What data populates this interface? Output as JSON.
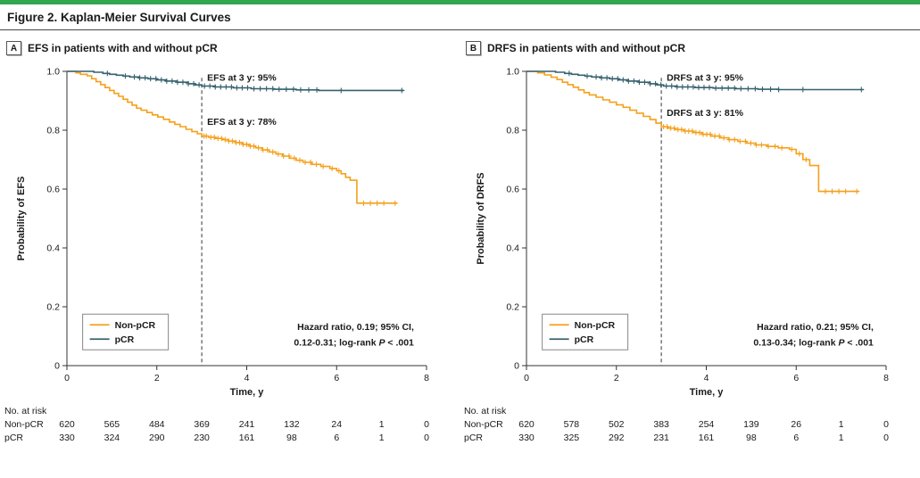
{
  "figure": {
    "title": "Figure 2. Kaplan-Meier Survival Curves",
    "accent_color": "#2FA84F"
  },
  "colors": {
    "non_pcr": "#F5A01B",
    "pcr": "#35616E",
    "axis": "#333333",
    "dashed": "#555555",
    "text": "#1a1a1a"
  },
  "chart_data": [
    {
      "type": "line",
      "subtype": "kaplan-meier-step",
      "panel_label": "A",
      "title": "EFS in patients with and without pCR",
      "xlabel": "Time, y",
      "ylabel": "Probability of EFS",
      "xlim": [
        0,
        8
      ],
      "ylim": [
        0,
        1
      ],
      "xticks": [
        0,
        2,
        4,
        6,
        8
      ],
      "yticks": [
        0,
        0.2,
        0.4,
        0.6,
        0.8,
        1.0
      ],
      "ref_line_x": 3,
      "annotations": [
        {
          "text": "EFS at 3 y: 95%",
          "x": 3.12,
          "y": 0.968
        },
        {
          "text": "EFS at 3 y: 78%",
          "x": 3.12,
          "y": 0.818
        }
      ],
      "stats": {
        "line1": "Hazard ratio, 0.19; 95% CI,",
        "line2_pre": "0.12-0.31; log-rank ",
        "line2_italic": "P",
        "line2_post": " < .001"
      },
      "series": [
        {
          "name": "Non-pCR",
          "color_key": "non_pcr",
          "steps": [
            [
              0,
              1
            ],
            [
              0.2,
              0.995
            ],
            [
              0.3,
              0.99
            ],
            [
              0.45,
              0.985
            ],
            [
              0.55,
              0.975
            ],
            [
              0.65,
              0.965
            ],
            [
              0.75,
              0.955
            ],
            [
              0.85,
              0.945
            ],
            [
              0.95,
              0.935
            ],
            [
              1.05,
              0.925
            ],
            [
              1.15,
              0.915
            ],
            [
              1.25,
              0.905
            ],
            [
              1.35,
              0.895
            ],
            [
              1.45,
              0.885
            ],
            [
              1.55,
              0.875
            ],
            [
              1.65,
              0.868
            ],
            [
              1.78,
              0.86
            ],
            [
              1.9,
              0.852
            ],
            [
              2.02,
              0.845
            ],
            [
              2.15,
              0.837
            ],
            [
              2.28,
              0.828
            ],
            [
              2.4,
              0.82
            ],
            [
              2.52,
              0.812
            ],
            [
              2.65,
              0.803
            ],
            [
              2.78,
              0.795
            ],
            [
              2.9,
              0.788
            ],
            [
              3.0,
              0.78
            ],
            [
              3.15,
              0.776
            ],
            [
              3.3,
              0.772
            ],
            [
              3.45,
              0.768
            ],
            [
              3.6,
              0.763
            ],
            [
              3.75,
              0.758
            ],
            [
              3.9,
              0.752
            ],
            [
              4.05,
              0.746
            ],
            [
              4.2,
              0.74
            ],
            [
              4.35,
              0.733
            ],
            [
              4.5,
              0.726
            ],
            [
              4.65,
              0.719
            ],
            [
              4.8,
              0.712
            ],
            [
              4.95,
              0.705
            ],
            [
              5.1,
              0.698
            ],
            [
              5.25,
              0.691
            ],
            [
              5.45,
              0.684
            ],
            [
              5.65,
              0.677
            ],
            [
              5.85,
              0.67
            ],
            [
              6.0,
              0.662
            ],
            [
              6.1,
              0.652
            ],
            [
              6.2,
              0.64
            ],
            [
              6.3,
              0.63
            ],
            [
              6.45,
              0.552
            ],
            [
              7.35,
              0.552
            ]
          ],
          "censor_times": [
            3.05,
            3.1,
            3.2,
            3.28,
            3.36,
            3.44,
            3.52,
            3.6,
            3.68,
            3.76,
            3.84,
            3.92,
            4.0,
            4.08,
            4.16,
            4.26,
            4.36,
            4.46,
            4.58,
            4.7,
            4.82,
            4.94,
            5.06,
            5.18,
            5.3,
            5.42,
            5.55,
            5.7,
            5.9,
            6.05,
            6.6,
            6.75,
            6.9,
            7.05,
            7.3
          ]
        },
        {
          "name": "pCR",
          "color_key": "pcr",
          "steps": [
            [
              0,
              1
            ],
            [
              0.6,
              0.997
            ],
            [
              0.8,
              0.993
            ],
            [
              0.95,
              0.99
            ],
            [
              1.1,
              0.987
            ],
            [
              1.25,
              0.984
            ],
            [
              1.4,
              0.981
            ],
            [
              1.6,
              0.978
            ],
            [
              1.8,
              0.975
            ],
            [
              2.0,
              0.971
            ],
            [
              2.2,
              0.967
            ],
            [
              2.45,
              0.963
            ],
            [
              2.7,
              0.958
            ],
            [
              2.85,
              0.954
            ],
            [
              3.0,
              0.95
            ],
            [
              3.3,
              0.947
            ],
            [
              3.7,
              0.944
            ],
            [
              4.1,
              0.941
            ],
            [
              4.6,
              0.939
            ],
            [
              5.1,
              0.937
            ],
            [
              5.6,
              0.935
            ],
            [
              7.5,
              0.935
            ]
          ],
          "censor_times": [
            0.9,
            1.3,
            1.5,
            1.62,
            1.74,
            1.86,
            1.98,
            2.1,
            2.22,
            2.34,
            2.46,
            2.58,
            2.7,
            2.82,
            2.94,
            3.06,
            3.18,
            3.3,
            3.42,
            3.54,
            3.66,
            3.78,
            3.9,
            4.02,
            4.16,
            4.3,
            4.44,
            4.58,
            4.72,
            4.88,
            5.04,
            5.2,
            5.38,
            5.56,
            6.1,
            7.45
          ]
        }
      ],
      "risk_table": {
        "header": "No. at risk",
        "times": [
          0,
          1,
          2,
          3,
          4,
          5,
          6,
          7,
          8
        ],
        "rows": [
          {
            "name": "Non-pCR",
            "values": [
              620,
              565,
              484,
              369,
              241,
              132,
              24,
              1,
              0
            ]
          },
          {
            "name": "pCR",
            "values": [
              330,
              324,
              290,
              230,
              161,
              98,
              6,
              1,
              0
            ]
          }
        ]
      }
    },
    {
      "type": "line",
      "subtype": "kaplan-meier-step",
      "panel_label": "B",
      "title": "DRFS in patients with and without pCR",
      "xlabel": "Time, y",
      "ylabel": "Probability of DRFS",
      "xlim": [
        0,
        8
      ],
      "ylim": [
        0,
        1
      ],
      "xticks": [
        0,
        2,
        4,
        6,
        8
      ],
      "yticks": [
        0,
        0.2,
        0.4,
        0.6,
        0.8,
        1.0
      ],
      "ref_line_x": 3,
      "annotations": [
        {
          "text": "DRFS at 3 y: 95%",
          "x": 3.12,
          "y": 0.968
        },
        {
          "text": "DRFS at 3 y: 81%",
          "x": 3.12,
          "y": 0.848
        }
      ],
      "stats": {
        "line1": "Hazard ratio, 0.21; 95% CI,",
        "line2_pre": "0.13-0.34; log-rank ",
        "line2_italic": "P",
        "line2_post": " < .001"
      },
      "series": [
        {
          "name": "Non-pCR",
          "color_key": "non_pcr",
          "steps": [
            [
              0,
              1
            ],
            [
              0.25,
              0.995
            ],
            [
              0.4,
              0.988
            ],
            [
              0.55,
              0.98
            ],
            [
              0.68,
              0.972
            ],
            [
              0.8,
              0.963
            ],
            [
              0.92,
              0.955
            ],
            [
              1.04,
              0.946
            ],
            [
              1.16,
              0.937
            ],
            [
              1.28,
              0.928
            ],
            [
              1.4,
              0.92
            ],
            [
              1.55,
              0.912
            ],
            [
              1.7,
              0.903
            ],
            [
              1.85,
              0.895
            ],
            [
              2.0,
              0.886
            ],
            [
              2.15,
              0.878
            ],
            [
              2.3,
              0.868
            ],
            [
              2.45,
              0.858
            ],
            [
              2.6,
              0.847
            ],
            [
              2.75,
              0.836
            ],
            [
              2.88,
              0.824
            ],
            [
              3.0,
              0.812
            ],
            [
              3.15,
              0.807
            ],
            [
              3.3,
              0.802
            ],
            [
              3.5,
              0.797
            ],
            [
              3.7,
              0.792
            ],
            [
              3.9,
              0.786
            ],
            [
              4.1,
              0.78
            ],
            [
              4.3,
              0.774
            ],
            [
              4.5,
              0.768
            ],
            [
              4.7,
              0.762
            ],
            [
              4.9,
              0.756
            ],
            [
              5.1,
              0.75
            ],
            [
              5.35,
              0.745
            ],
            [
              5.6,
              0.74
            ],
            [
              5.85,
              0.735
            ],
            [
              6.0,
              0.72
            ],
            [
              6.15,
              0.7
            ],
            [
              6.3,
              0.68
            ],
            [
              6.5,
              0.592
            ],
            [
              7.4,
              0.592
            ]
          ],
          "censor_times": [
            3.05,
            3.13,
            3.21,
            3.29,
            3.37,
            3.45,
            3.53,
            3.61,
            3.69,
            3.77,
            3.85,
            3.93,
            4.01,
            4.09,
            4.19,
            4.29,
            4.39,
            4.51,
            4.63,
            4.75,
            4.87,
            4.99,
            5.11,
            5.23,
            5.38,
            5.53,
            5.68,
            5.9,
            6.07,
            6.22,
            6.65,
            6.8,
            6.95,
            7.1,
            7.35
          ]
        },
        {
          "name": "pCR",
          "color_key": "pcr",
          "steps": [
            [
              0,
              1
            ],
            [
              0.65,
              0.997
            ],
            [
              0.85,
              0.993
            ],
            [
              1.0,
              0.99
            ],
            [
              1.15,
              0.987
            ],
            [
              1.3,
              0.984
            ],
            [
              1.45,
              0.981
            ],
            [
              1.65,
              0.978
            ],
            [
              1.85,
              0.975
            ],
            [
              2.05,
              0.971
            ],
            [
              2.25,
              0.967
            ],
            [
              2.5,
              0.963
            ],
            [
              2.75,
              0.958
            ],
            [
              2.9,
              0.954
            ],
            [
              3.05,
              0.95
            ],
            [
              3.35,
              0.947
            ],
            [
              3.75,
              0.945
            ],
            [
              4.15,
              0.943
            ],
            [
              4.65,
              0.941
            ],
            [
              5.15,
              0.939
            ],
            [
              5.6,
              0.938
            ],
            [
              7.5,
              0.938
            ]
          ],
          "censor_times": [
            0.95,
            1.35,
            1.55,
            1.67,
            1.79,
            1.91,
            2.03,
            2.15,
            2.27,
            2.39,
            2.51,
            2.63,
            2.75,
            2.87,
            2.99,
            3.11,
            3.23,
            3.35,
            3.47,
            3.59,
            3.71,
            3.83,
            3.95,
            4.07,
            4.21,
            4.35,
            4.49,
            4.63,
            4.77,
            4.93,
            5.09,
            5.25,
            5.43,
            5.61,
            6.15,
            7.45
          ]
        }
      ],
      "risk_table": {
        "header": "No. at risk",
        "times": [
          0,
          1,
          2,
          3,
          4,
          5,
          6,
          7,
          8
        ],
        "rows": [
          {
            "name": "Non-pCR",
            "values": [
              620,
              578,
              502,
              383,
              254,
              139,
              26,
              1,
              0
            ]
          },
          {
            "name": "pCR",
            "values": [
              330,
              325,
              292,
              231,
              161,
              98,
              6,
              1,
              0
            ]
          }
        ]
      }
    }
  ]
}
